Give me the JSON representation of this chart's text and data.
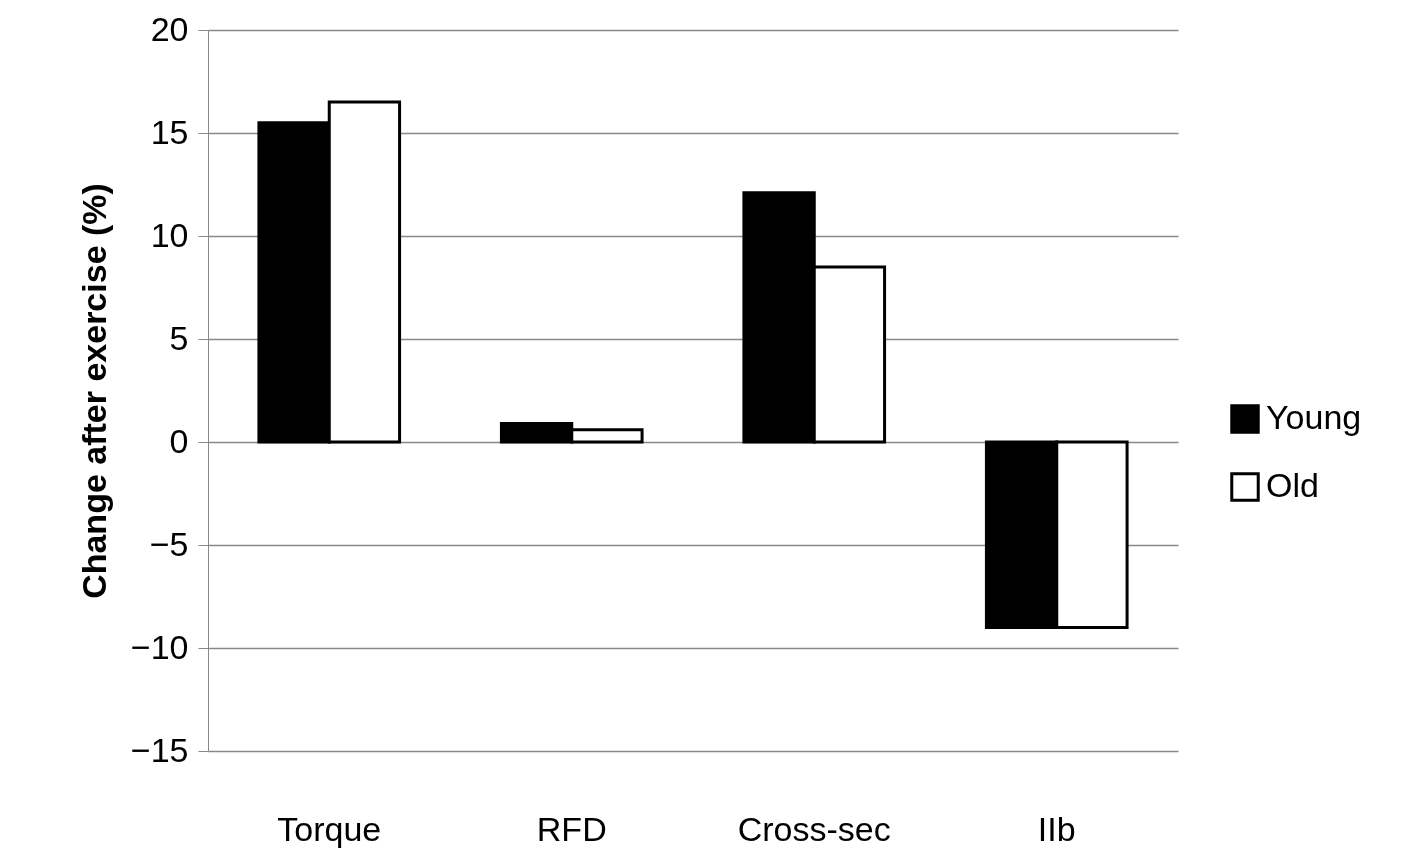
{
  "chart_data": {
    "type": "bar",
    "ylabel": "Change after exercise  (%)",
    "categories": [
      "Torque",
      "RFD",
      "Cross-sec",
      "IIb"
    ],
    "series": [
      {
        "name": "Young",
        "color": "#000000",
        "values": [
          15.5,
          0.9,
          12.1,
          -9.0
        ]
      },
      {
        "name": "Old",
        "color": "#ffffff",
        "values": [
          16.5,
          0.6,
          8.5,
          -9.0
        ]
      }
    ],
    "ylim": [
      -15,
      20
    ],
    "yticks": [
      -15,
      -10,
      -5,
      0,
      5,
      10,
      15,
      20
    ],
    "grid": "y",
    "legend": "right"
  }
}
